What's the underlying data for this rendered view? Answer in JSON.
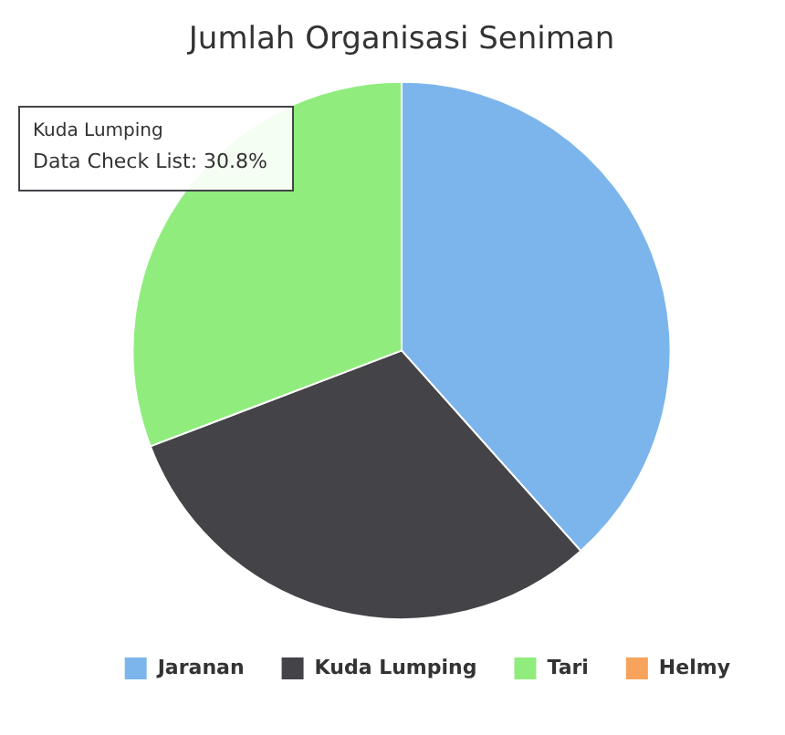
{
  "chart_data": {
    "type": "pie",
    "title": "Jumlah Organisasi Seniman",
    "categories": [
      "Jaranan",
      "Kuda Lumping",
      "Tari",
      "Helmy"
    ],
    "values": [
      38.4,
      30.8,
      30.8,
      0
    ],
    "colors": [
      "#7cb5ec",
      "#434348",
      "#90ed7d",
      "#f7a35c"
    ],
    "legend": "bottom right",
    "annotations": [
      "Kuda Lumping",
      "Data Check List: 30.8%"
    ]
  }
}
